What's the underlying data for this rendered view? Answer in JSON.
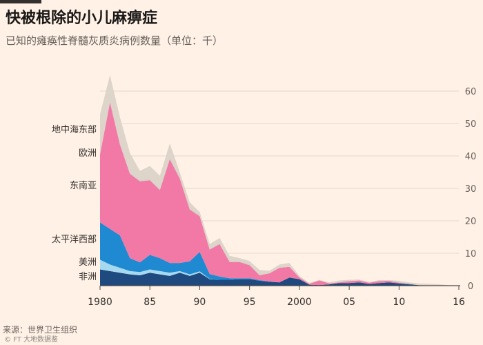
{
  "title": "快被根除的小儿麻痹症",
  "subtitle": "已知的瘫痪性脊髓灰质炎病例数量（单位：千）",
  "source": "来源：世界卫生组织",
  "watermark": "© FT  大地数据鉴",
  "chart_data": {
    "type": "area",
    "stacked": true,
    "title": "快被根除的小儿麻痹症",
    "ylabel": "已知的瘫痪性脊髓灰质炎病例数量（单位：千）",
    "ylim": [
      0,
      60
    ],
    "yticks": [
      0,
      10,
      20,
      30,
      40,
      50,
      60
    ],
    "xlim": [
      1980,
      2016
    ],
    "xticks": [
      1980,
      1985,
      1990,
      1995,
      2000,
      2005,
      2010,
      2016
    ],
    "xtick_labels": [
      "1980",
      "85",
      "90",
      "95",
      "2000",
      "05",
      "10",
      "16"
    ],
    "grid": true,
    "legend": "inline-left",
    "x": [
      1980,
      1981,
      1982,
      1983,
      1984,
      1985,
      1986,
      1987,
      1988,
      1989,
      1990,
      1991,
      1992,
      1993,
      1994,
      1995,
      1996,
      1997,
      1998,
      1999,
      2000,
      2001,
      2002,
      2003,
      2004,
      2005,
      2006,
      2007,
      2008,
      2009,
      2010,
      2011,
      2012,
      2013,
      2014,
      2015,
      2016
    ],
    "series": [
      {
        "name": "非洲",
        "color": "#1e4a7f",
        "values": [
          5,
          4.5,
          4,
          3.5,
          3.2,
          4,
          3.5,
          3,
          4,
          3,
          4,
          2,
          1.8,
          1.8,
          2,
          2,
          1.5,
          1.2,
          1,
          2.5,
          2,
          0.3,
          0.2,
          0.4,
          0.8,
          0.8,
          1,
          0.5,
          0.8,
          1,
          0.7,
          0.4,
          0.15,
          0.1,
          0.05,
          0.02,
          0.01
        ]
      },
      {
        "name": "美洲",
        "color": "#a6d9f0",
        "values": [
          3,
          2,
          1.5,
          1,
          1,
          1,
          1,
          1,
          0.5,
          0.5,
          0.4,
          0.1,
          0,
          0,
          0,
          0,
          0,
          0,
          0,
          0,
          0,
          0,
          0,
          0,
          0,
          0,
          0,
          0,
          0,
          0,
          0,
          0,
          0,
          0,
          0,
          0,
          0
        ]
      },
      {
        "name": "太平洋西部",
        "color": "#1f8ad1",
        "values": [
          11.5,
          11,
          10,
          4,
          3,
          4.5,
          4,
          3,
          2.5,
          4,
          6,
          1.5,
          1,
          0.5,
          0.3,
          0.3,
          0.2,
          0.1,
          0,
          0,
          0,
          0,
          0,
          0,
          0,
          0,
          0,
          0,
          0,
          0,
          0,
          0.1,
          0,
          0,
          0,
          0,
          0
        ]
      },
      {
        "name": "东南亚",
        "color": "#f279a6",
        "values": [
          21,
          39,
          28,
          26,
          25,
          23,
          21,
          32,
          26,
          16,
          11,
          7.5,
          10,
          5,
          5,
          4,
          1.5,
          2.5,
          4.5,
          3.3,
          0.5,
          0.3,
          1.4,
          0.3,
          0.2,
          0.6,
          0.6,
          0.4,
          0.6,
          0.5,
          0.2,
          0.1,
          0,
          0,
          0,
          0,
          0
        ]
      },
      {
        "name": "欧洲",
        "color": "#d6cfc6",
        "values": [
          0.4,
          0.4,
          0.4,
          0.4,
          0.4,
          0.4,
          0.4,
          0.4,
          0.4,
          0.4,
          0.4,
          0.3,
          0.3,
          0.3,
          0.3,
          0.3,
          0.3,
          0.2,
          0.2,
          0.1,
          0,
          0,
          0,
          0,
          0,
          0,
          0,
          0,
          0,
          0,
          0.4,
          0,
          0,
          0,
          0,
          0,
          0
        ]
      },
      {
        "name": "地中海东部",
        "color": "#ddd4ca",
        "values": [
          12,
          8,
          8,
          6,
          2.8,
          4,
          4,
          4.5,
          1.5,
          1.8,
          0.9,
          1.4,
          1.6,
          1.6,
          0.9,
          1,
          1.3,
          0.6,
          0.8,
          1.1,
          0.5,
          0.2,
          0.2,
          0.3,
          0.6,
          0.4,
          0.3,
          0.2,
          0.3,
          0.2,
          0.2,
          0.4,
          0.5,
          0.5,
          0.4,
          0.1,
          0.05
        ]
      }
    ]
  }
}
